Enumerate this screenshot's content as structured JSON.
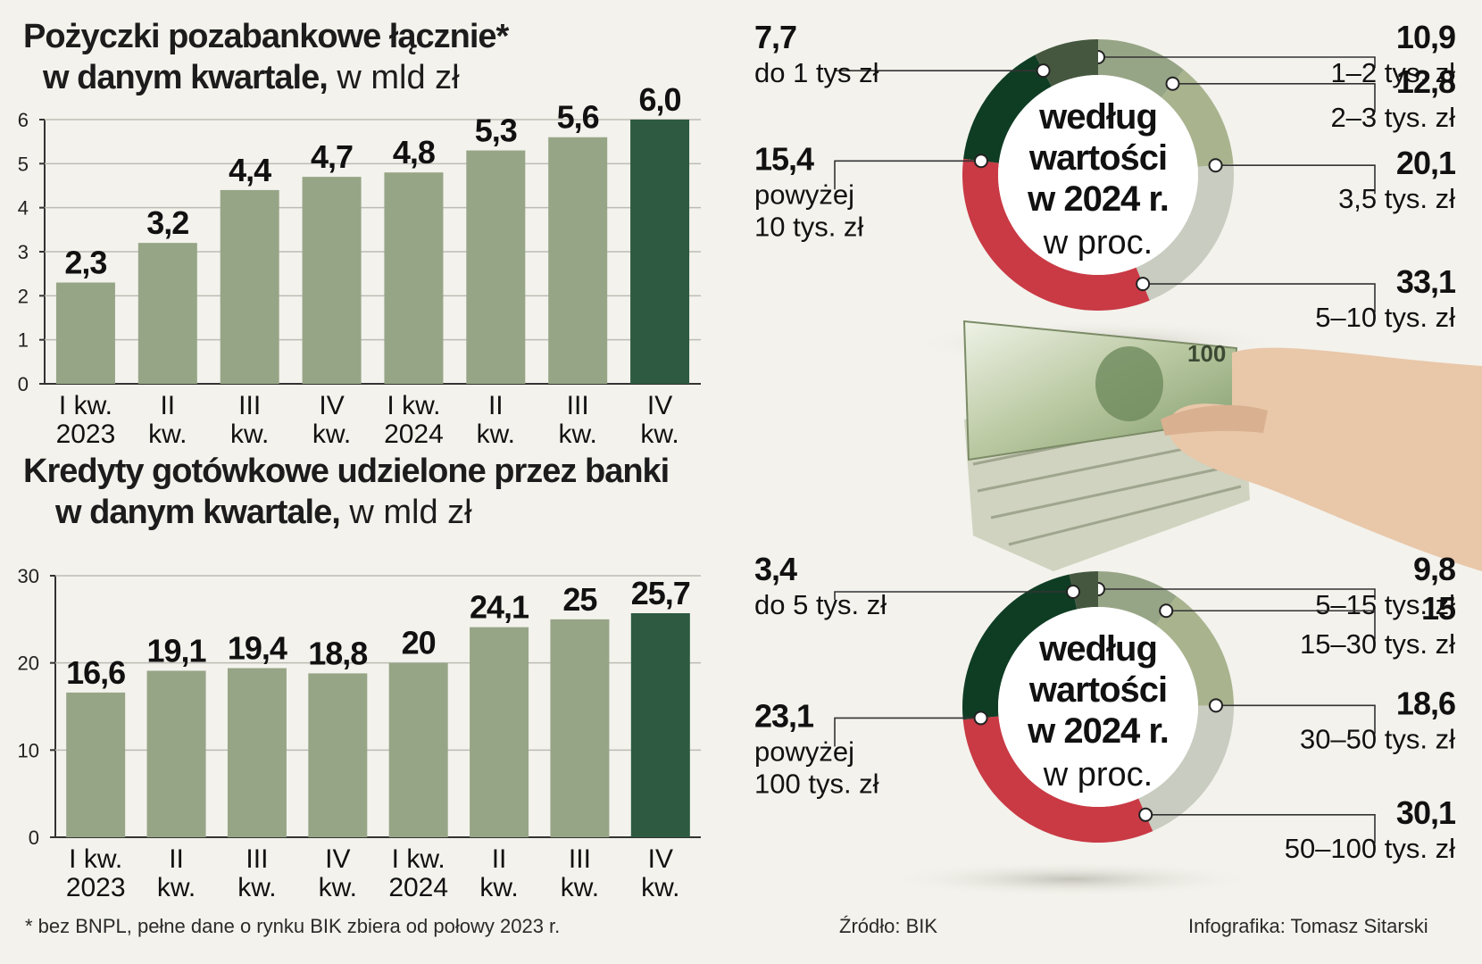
{
  "footnote": "* bez BNPL, pełne dane o rynku BIK zbiera od połowy 2023 r.",
  "source": "Źródło: BIK",
  "credit": "Infografika: Tomasz Sitarski",
  "colors": {
    "bar": "#97a587",
    "bar_last": "#2d5a40",
    "dark_green": "#1d4a2e",
    "red": "#c93a45",
    "photo_green": "#9aa882"
  },
  "chart1_title": {
    "line1": "Pożyczki pozabankowe łącznie*",
    "line2": "w danym kwartale,",
    "unit": " w mld zł"
  },
  "chart2_title": {
    "line1": "Kredyty gotówkowe udzielone przez banki",
    "line2": "w danym kwartale,",
    "unit": " w mld zł"
  },
  "chart_data": [
    {
      "type": "bar",
      "title": "Pożyczki pozabankowe łącznie* w danym kwartale, w mld zł",
      "categories": [
        [
          "I kw.",
          "2023"
        ],
        [
          "II",
          "kw."
        ],
        [
          "III",
          "kw."
        ],
        [
          "IV",
          "kw."
        ],
        [
          "I kw.",
          "2024"
        ],
        [
          "II",
          "kw."
        ],
        [
          "III",
          "kw."
        ],
        [
          "IV",
          "kw."
        ]
      ],
      "values": [
        2.3,
        3.2,
        4.4,
        4.7,
        4.8,
        5.3,
        5.6,
        6.0
      ],
      "value_labels": [
        "2,3",
        "3,2",
        "4,4",
        "4,7",
        "4,8",
        "5,3",
        "5,6",
        "6,0"
      ],
      "yticks": [
        0,
        1,
        2,
        3,
        4,
        5,
        6
      ],
      "ylim": [
        0,
        6
      ],
      "highlight_last": true
    },
    {
      "type": "bar",
      "title": "Kredyty gotówkowe udzielone przez banki w danym kwartale, w mld zł",
      "categories": [
        [
          "I kw.",
          "2023"
        ],
        [
          "II",
          "kw."
        ],
        [
          "III",
          "kw."
        ],
        [
          "IV",
          "kw."
        ],
        [
          "I kw.",
          "2024"
        ],
        [
          "II",
          "kw."
        ],
        [
          "III",
          "kw."
        ],
        [
          "IV",
          "kw."
        ]
      ],
      "values": [
        16.6,
        19.1,
        19.4,
        18.8,
        20,
        24.1,
        25,
        25.7
      ],
      "value_labels": [
        "16,6",
        "19,1",
        "19,4",
        "18,8",
        "20",
        "24,1",
        "25",
        "25,7"
      ],
      "yticks": [
        0,
        10,
        20,
        30
      ],
      "ylim": [
        0,
        30
      ],
      "highlight_last": true
    },
    {
      "type": "pie",
      "center_lines": [
        "według",
        "wartości",
        "w 2024 r."
      ],
      "center_sub": "w proc.",
      "slices": [
        {
          "value": 10.9,
          "value_label": "10,9",
          "label": [
            "1–2 tys. zł"
          ],
          "color": "#97a587"
        },
        {
          "value": 12.8,
          "value_label": "12,8",
          "label": [
            "2–3 tys. zł"
          ],
          "color": "#a9b48f"
        },
        {
          "value": 20.1,
          "value_label": "20,1",
          "label": [
            "3,5 tys. zł"
          ],
          "color": "#c9ccc0"
        },
        {
          "value": 33.1,
          "value_label": "33,1",
          "label": [
            "5–10 tys. zł"
          ],
          "color": "#c93a45"
        },
        {
          "value": 15.4,
          "value_label": "15,4",
          "label": [
            "powyżej",
            "10 tys. zł"
          ],
          "color": "#0f3d24"
        },
        {
          "value": 7.7,
          "value_label": "7,7",
          "label": [
            "do 1 tys zł"
          ],
          "color": "#45583f"
        }
      ]
    },
    {
      "type": "pie",
      "center_lines": [
        "według",
        "wartości",
        "w 2024 r."
      ],
      "center_sub": "w proc.",
      "slices": [
        {
          "value": 9.8,
          "value_label": "9,8",
          "label": [
            "5–15 tys. zł"
          ],
          "color": "#97a587"
        },
        {
          "value": 15,
          "value_label": "15",
          "label": [
            "15–30 tys. zł"
          ],
          "color": "#a9b48f"
        },
        {
          "value": 18.6,
          "value_label": "18,6",
          "label": [
            "30–50 tys. zł"
          ],
          "color": "#c9ccc0"
        },
        {
          "value": 30.1,
          "value_label": "30,1",
          "label": [
            "50–100 tys. zł"
          ],
          "color": "#c93a45"
        },
        {
          "value": 23.1,
          "value_label": "23,1",
          "label": [
            "powyżej",
            "100 tys. zł"
          ],
          "color": "#0f3d24"
        },
        {
          "value": 3.4,
          "value_label": "3,4",
          "label": [
            "do 5 tys. zł"
          ],
          "color": "#45583f"
        }
      ]
    }
  ]
}
